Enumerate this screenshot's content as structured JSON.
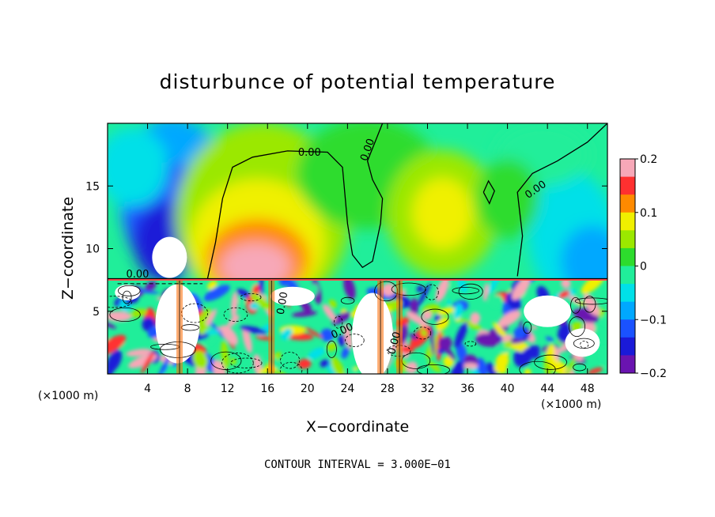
{
  "chart_data": {
    "type": "heatmap",
    "title": "disturbunce of potential temperature",
    "xlabel": "X−coordinate",
    "ylabel": "Z−coordinate",
    "x_unit": "(×1000 m)",
    "x_unit_right": "(×1000 m)",
    "xlim": [
      0,
      50
    ],
    "ylim": [
      0,
      20
    ],
    "x_ticks": [
      4,
      8,
      12,
      16,
      20,
      24,
      28,
      32,
      36,
      40,
      44,
      48
    ],
    "y_ticks": [
      5,
      10,
      15
    ],
    "colorbar": {
      "min": -0.2,
      "max": 0.2,
      "ticks": [
        "0.2",
        "0.1",
        "0",
        "−0.1",
        "−0.2"
      ],
      "tick_values": [
        0.2,
        0.1,
        0,
        -0.1,
        -0.2
      ],
      "colors": [
        "#f7a8b8",
        "#ff3030",
        "#ff8a00",
        "#f0f000",
        "#9be800",
        "#2ddc2d",
        "#20ee9a",
        "#00e0e8",
        "#00a8ff",
        "#1a52ff",
        "#1a1ad8",
        "#6a14b0"
      ]
    },
    "contour_labels": [
      "0.00",
      "0.00",
      "0.00",
      "0.00",
      "0.00",
      "0.00",
      "0.00"
    ],
    "contour_interval": "CONTOUR INTERVAL = 3.000E−01",
    "inversion_height": 7.5
  }
}
